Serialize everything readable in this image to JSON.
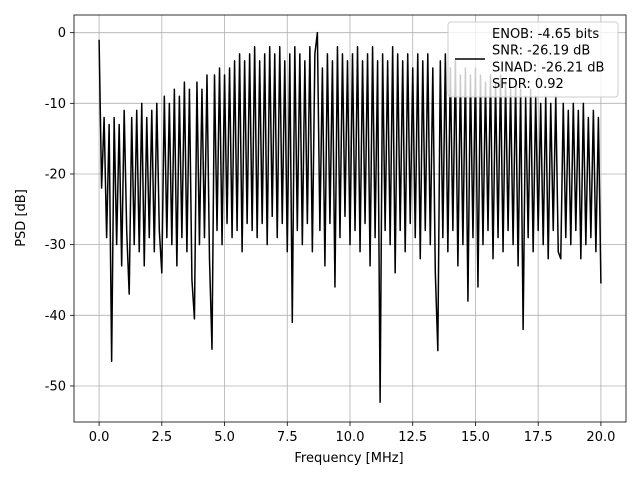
{
  "chart_data": {
    "type": "line",
    "xlabel": "Frequency [MHz]",
    "ylabel": "PSD [dB]",
    "xlim": [
      -1.0,
      21.0
    ],
    "ylim": [
      -55.1,
      2.5
    ],
    "xticks": [
      {
        "value": 0,
        "label": "0.0"
      },
      2.5,
      {
        "value": 5,
        "label": "5.0"
      },
      7.5,
      {
        "value": 10,
        "label": "10.0"
      },
      12.5,
      {
        "value": 15,
        "label": "15.0"
      },
      17.5,
      {
        "value": 20,
        "label": "20.0"
      }
    ],
    "yticks": [
      0,
      -10,
      -20,
      -30,
      -40,
      -50
    ],
    "grid": true,
    "legend": "upper right",
    "x": [
      0,
      0.1,
      0.2,
      0.3,
      0.4,
      0.5,
      0.6,
      0.7,
      0.8,
      0.9,
      1,
      1.1,
      1.2,
      1.3,
      1.4,
      1.5,
      1.6,
      1.7,
      1.8,
      1.9,
      2,
      2.1,
      2.2,
      2.3,
      2.4,
      2.5,
      2.6,
      2.7,
      2.8,
      2.9,
      3,
      3.1,
      3.2,
      3.3,
      3.4,
      3.5,
      3.6,
      3.7,
      3.8,
      3.9,
      4,
      4.1,
      4.2,
      4.3,
      4.4,
      4.5,
      4.6,
      4.7,
      4.8,
      4.9,
      5,
      5.1,
      5.2,
      5.3,
      5.4,
      5.5,
      5.6,
      5.7,
      5.8,
      5.9,
      6,
      6.1,
      6.2,
      6.3,
      6.4,
      6.5,
      6.6,
      6.7,
      6.8,
      6.9,
      7,
      7.1,
      7.2,
      7.3,
      7.4,
      7.5,
      7.6,
      7.7,
      7.8,
      7.9,
      8,
      8.1,
      8.2,
      8.3,
      8.4,
      8.5,
      8.6,
      8.7,
      8.8,
      8.9,
      9,
      9.1,
      9.2,
      9.3,
      9.4,
      9.5,
      9.6,
      9.7,
      9.8,
      9.9,
      10,
      10.1,
      10.2,
      10.3,
      10.4,
      10.5,
      10.6,
      10.7,
      10.8,
      10.9,
      11,
      11.1,
      11.2,
      11.3,
      11.4,
      11.5,
      11.6,
      11.7,
      11.8,
      11.9,
      12,
      12.1,
      12.2,
      12.3,
      12.4,
      12.5,
      12.6,
      12.7,
      12.8,
      12.9,
      13,
      13.1,
      13.2,
      13.3,
      13.4,
      13.5,
      13.6,
      13.7,
      13.8,
      13.9,
      14,
      14.1,
      14.2,
      14.3,
      14.4,
      14.5,
      14.6,
      14.7,
      14.8,
      14.9,
      15,
      15.1,
      15.2,
      15.3,
      15.4,
      15.5,
      15.6,
      15.7,
      15.8,
      15.9,
      16,
      16.1,
      16.2,
      16.3,
      16.4,
      16.5,
      16.6,
      16.7,
      16.8,
      16.9,
      17,
      17.1,
      17.2,
      17.3,
      17.4,
      17.5,
      17.6,
      17.7,
      17.8,
      17.9,
      18,
      18.1,
      18.2,
      18.3,
      18.4,
      18.5,
      18.6,
      18.7,
      18.8,
      18.9,
      19,
      19.1,
      19.2,
      19.3,
      19.4,
      19.5,
      19.6,
      19.7,
      19.8,
      19.9,
      20
    ],
    "series": [
      {
        "name": "ENOB: -4.65 bits\nSNR: -26.19 dB\nSINAD: -26.21 dB\nSFDR: 0.92",
        "color": "#000000",
        "values": [
          -1,
          -22,
          -12,
          -29,
          -13,
          -46.5,
          -12,
          -30,
          -13,
          -33,
          -11,
          -28,
          -37,
          -12,
          -30,
          -11,
          -31,
          -10,
          -33,
          -12,
          -29,
          -11,
          -31,
          -10,
          -28,
          -34,
          -9,
          -29,
          -10,
          -30,
          -8,
          -33,
          -9,
          -29,
          -7,
          -31,
          -8,
          -35,
          -40.5,
          -7,
          -30,
          -8,
          -29,
          -6,
          -32,
          -44.8,
          -6,
          -28,
          -5,
          -30,
          -6,
          -27,
          -5,
          -29,
          -4,
          -28,
          -3,
          -31,
          -4,
          -27,
          -3,
          -28,
          -2,
          -29,
          -4,
          -27,
          -3,
          -30,
          -2,
          -26,
          -3,
          -29,
          -2,
          -27,
          -4,
          -31,
          -3,
          -41,
          -2,
          -28,
          -3,
          -30,
          -4,
          -27,
          -2,
          -31,
          -3,
          0,
          -28,
          -5,
          -33,
          -3,
          -27,
          -4,
          -36,
          -2,
          -29,
          -3,
          -26,
          -4,
          -30,
          -3,
          -28,
          -2,
          -31,
          -4,
          -27,
          -3,
          -33,
          -2,
          -29,
          -4,
          -52.3,
          -3,
          -28,
          -4,
          -30,
          -2,
          -34,
          -3,
          -28,
          -4,
          -31,
          -3,
          -27,
          -5,
          -29,
          -3,
          -32,
          -4,
          -28,
          -3,
          -30,
          -5,
          -34,
          -45,
          -4,
          -29,
          -3,
          -31,
          -5,
          -28,
          -4,
          -33,
          -6,
          -30,
          -5,
          -38,
          -6,
          -29,
          -5,
          -36,
          -6,
          -30,
          -7,
          -28,
          -6,
          -32,
          -7,
          -29,
          -6,
          -31,
          -7,
          -28,
          -8,
          -30,
          -7,
          -33,
          -8,
          -42,
          -9,
          -29,
          -8,
          -31,
          -9,
          -28,
          -10,
          -30,
          -9,
          -32,
          -10,
          -28,
          -9,
          -31,
          -32,
          -10,
          -29,
          -11,
          -30,
          -10,
          -28,
          -11,
          -32,
          -10,
          -30,
          -12,
          -29,
          -11,
          -31,
          -12,
          -35.5
        ]
      }
    ]
  }
}
